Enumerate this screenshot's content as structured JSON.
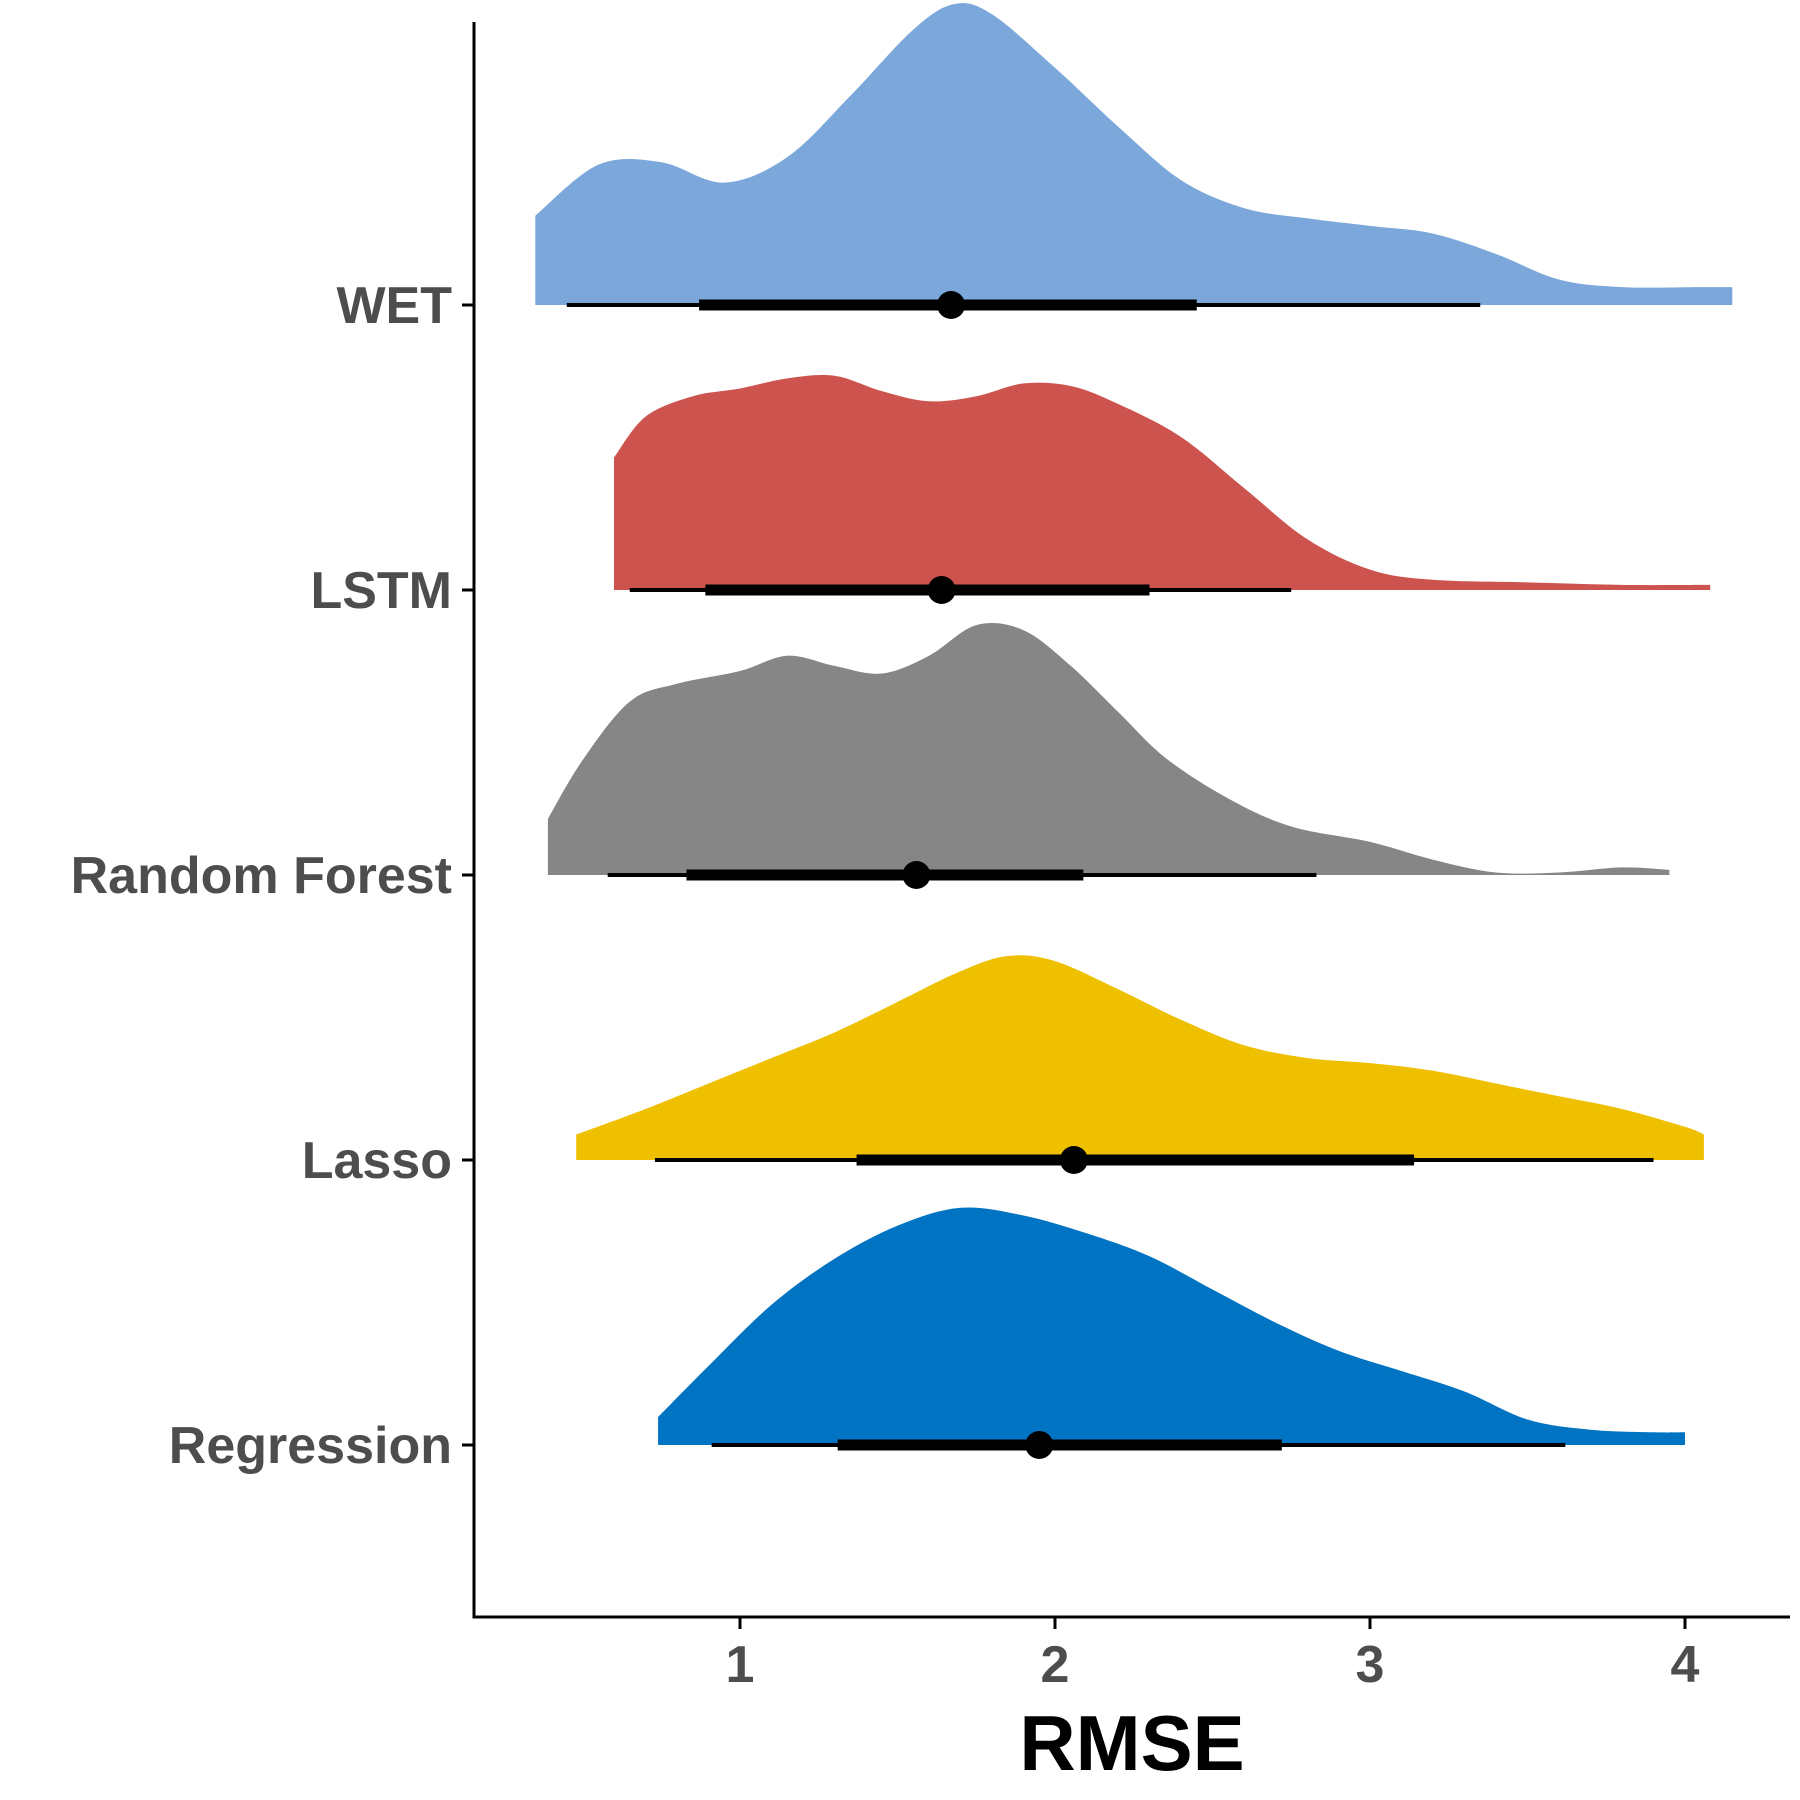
{
  "chart_data": {
    "type": "ridgeline",
    "xlabel": "RMSE",
    "ylabel": "",
    "xlim": [
      0.15,
      4.35
    ],
    "x_ticks": [
      {
        "value": 1,
        "label": "1"
      },
      {
        "value": 2,
        "label": "2"
      },
      {
        "value": 3,
        "label": "3"
      },
      {
        "value": 4,
        "label": "4"
      }
    ],
    "grid": false,
    "legend": "none",
    "series": [
      {
        "name": "WET",
        "color": "#7ba7db",
        "density": [
          [
            0.35,
            0.35
          ],
          [
            0.55,
            0.55
          ],
          [
            0.75,
            0.56
          ],
          [
            0.95,
            0.48
          ],
          [
            1.15,
            0.58
          ],
          [
            1.35,
            0.82
          ],
          [
            1.55,
            1.08
          ],
          [
            1.68,
            1.18
          ],
          [
            1.8,
            1.14
          ],
          [
            2.0,
            0.93
          ],
          [
            2.2,
            0.7
          ],
          [
            2.4,
            0.49
          ],
          [
            2.6,
            0.38
          ],
          [
            2.8,
            0.34
          ],
          [
            3.0,
            0.31
          ],
          [
            3.2,
            0.28
          ],
          [
            3.4,
            0.2
          ],
          [
            3.6,
            0.1
          ],
          [
            3.8,
            0.07
          ],
          [
            4.05,
            0.07
          ],
          [
            4.15,
            0.07
          ]
        ],
        "interval_thin": [
          0.45,
          3.35
        ],
        "interval_thick": [
          0.87,
          2.45
        ],
        "point": 1.67
      },
      {
        "name": "LSTM",
        "color": "#cd544e",
        "density": [
          [
            0.6,
            0.52
          ],
          [
            0.7,
            0.68
          ],
          [
            0.85,
            0.76
          ],
          [
            1.0,
            0.79
          ],
          [
            1.15,
            0.83
          ],
          [
            1.3,
            0.84
          ],
          [
            1.45,
            0.78
          ],
          [
            1.6,
            0.74
          ],
          [
            1.75,
            0.76
          ],
          [
            1.9,
            0.81
          ],
          [
            2.05,
            0.8
          ],
          [
            2.2,
            0.73
          ],
          [
            2.4,
            0.6
          ],
          [
            2.6,
            0.4
          ],
          [
            2.8,
            0.2
          ],
          [
            3.0,
            0.08
          ],
          [
            3.2,
            0.04
          ],
          [
            3.5,
            0.03
          ],
          [
            3.8,
            0.02
          ],
          [
            4.08,
            0.02
          ]
        ],
        "interval_thin": [
          0.65,
          2.75
        ],
        "interval_thick": [
          0.89,
          2.3
        ],
        "point": 1.64
      },
      {
        "name": "Random Forest",
        "color": "#868686",
        "density": [
          [
            0.39,
            0.22
          ],
          [
            0.5,
            0.45
          ],
          [
            0.65,
            0.68
          ],
          [
            0.8,
            0.75
          ],
          [
            1.0,
            0.8
          ],
          [
            1.15,
            0.86
          ],
          [
            1.3,
            0.82
          ],
          [
            1.45,
            0.79
          ],
          [
            1.6,
            0.86
          ],
          [
            1.75,
            0.98
          ],
          [
            1.9,
            0.96
          ],
          [
            2.05,
            0.82
          ],
          [
            2.2,
            0.64
          ],
          [
            2.35,
            0.46
          ],
          [
            2.55,
            0.3
          ],
          [
            2.75,
            0.19
          ],
          [
            3.0,
            0.13
          ],
          [
            3.2,
            0.06
          ],
          [
            3.4,
            0.01
          ],
          [
            3.6,
            0.01
          ],
          [
            3.8,
            0.03
          ],
          [
            3.95,
            0.02
          ]
        ],
        "interval_thin": [
          0.58,
          2.83
        ],
        "interval_thick": [
          0.83,
          2.09
        ],
        "point": 1.56
      },
      {
        "name": "Lasso",
        "color": "#efc000",
        "density": [
          [
            0.48,
            0.1
          ],
          [
            0.7,
            0.2
          ],
          [
            0.9,
            0.3
          ],
          [
            1.1,
            0.4
          ],
          [
            1.3,
            0.5
          ],
          [
            1.5,
            0.62
          ],
          [
            1.7,
            0.74
          ],
          [
            1.85,
            0.8
          ],
          [
            2.0,
            0.78
          ],
          [
            2.2,
            0.67
          ],
          [
            2.4,
            0.55
          ],
          [
            2.6,
            0.45
          ],
          [
            2.8,
            0.4
          ],
          [
            3.0,
            0.38
          ],
          [
            3.2,
            0.35
          ],
          [
            3.4,
            0.3
          ],
          [
            3.6,
            0.25
          ],
          [
            3.8,
            0.2
          ],
          [
            4.0,
            0.13
          ],
          [
            4.06,
            0.1
          ]
        ],
        "interval_thin": [
          0.73,
          3.9
        ],
        "interval_thick": [
          1.37,
          3.14
        ],
        "point": 2.06
      },
      {
        "name": "Regression",
        "color": "#0073c2",
        "density": [
          [
            0.74,
            0.11
          ],
          [
            0.9,
            0.31
          ],
          [
            1.1,
            0.55
          ],
          [
            1.3,
            0.73
          ],
          [
            1.5,
            0.86
          ],
          [
            1.7,
            0.93
          ],
          [
            1.9,
            0.9
          ],
          [
            2.1,
            0.83
          ],
          [
            2.3,
            0.74
          ],
          [
            2.5,
            0.61
          ],
          [
            2.7,
            0.48
          ],
          [
            2.9,
            0.37
          ],
          [
            3.1,
            0.29
          ],
          [
            3.3,
            0.21
          ],
          [
            3.5,
            0.1
          ],
          [
            3.7,
            0.06
          ],
          [
            3.9,
            0.05
          ],
          [
            4.0,
            0.05
          ]
        ],
        "interval_thin": [
          0.91,
          3.62
        ],
        "interval_thick": [
          1.31,
          2.72
        ],
        "point": 1.95
      }
    ]
  }
}
